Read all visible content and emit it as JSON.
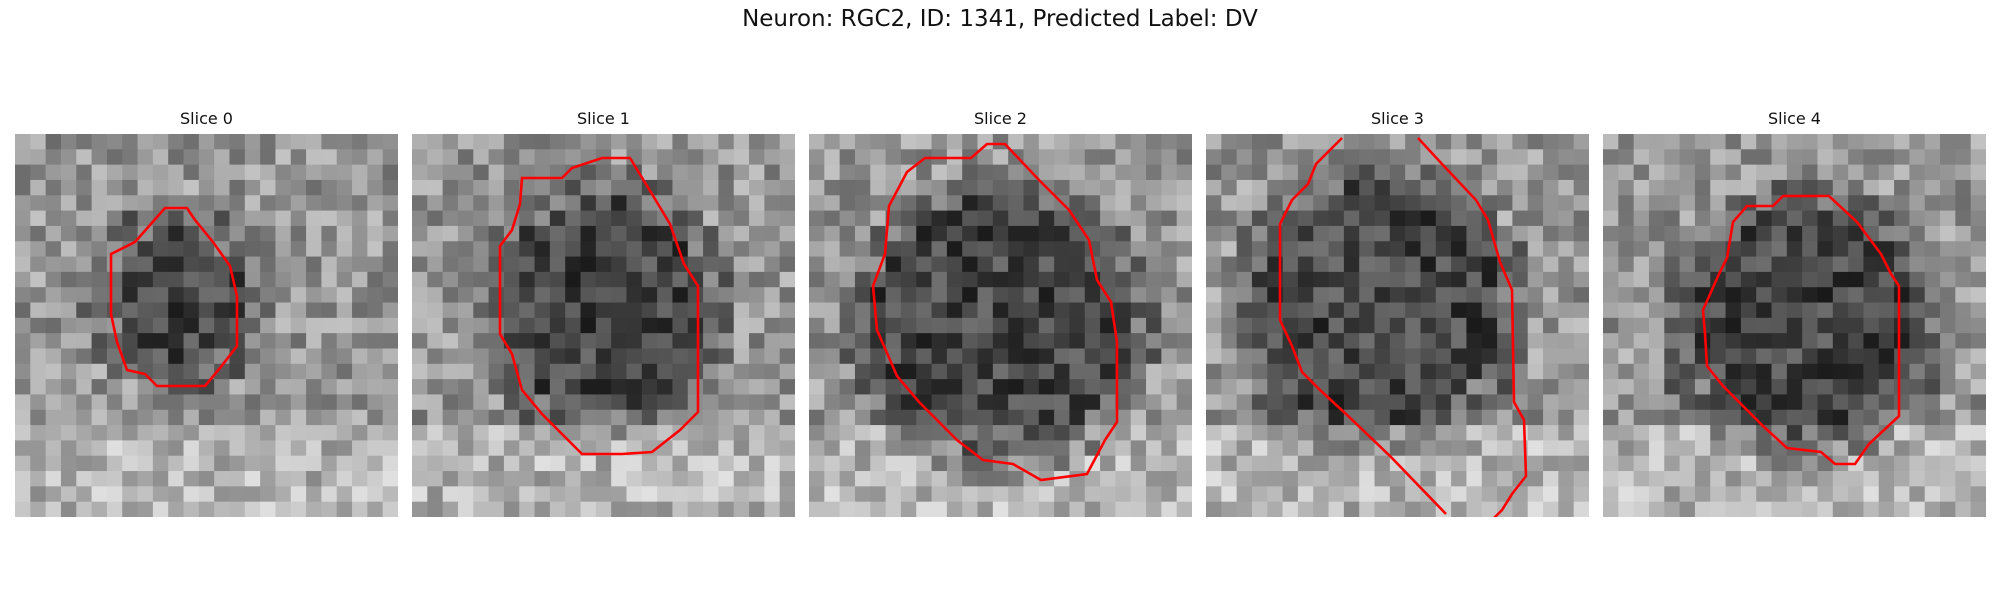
{
  "figure": {
    "title": "Neuron: RGC2, ID: 1341, Predicted Label: DV"
  },
  "slices": [
    {
      "label": "Slice 0"
    },
    {
      "label": "Slice 1"
    },
    {
      "label": "Slice 2"
    },
    {
      "label": "Slice 3"
    },
    {
      "label": "Slice 4"
    }
  ],
  "colors": {
    "contour": "#ff0000",
    "colormap": "gray"
  }
}
